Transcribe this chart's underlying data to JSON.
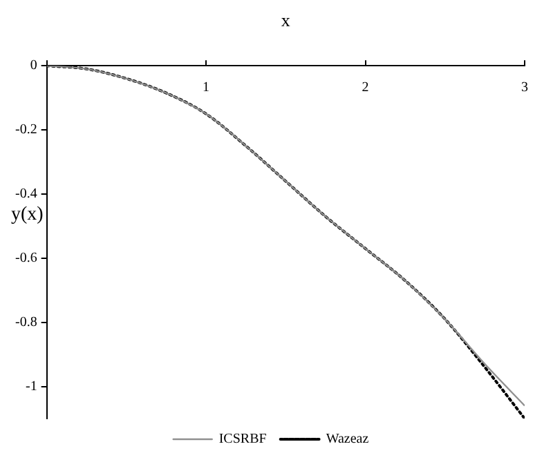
{
  "chart_data": {
    "type": "line",
    "xlabel": "x",
    "ylabel": "y(x)",
    "x": [
      0,
      0.25,
      0.5,
      0.75,
      1,
      1.25,
      1.5,
      1.75,
      2,
      2.25,
      2.5,
      2.75,
      3
    ],
    "series": [
      {
        "name": "ICSRBF",
        "color": "#909090",
        "line_style": "solid",
        "values": [
          0,
          -0.01,
          -0.04,
          -0.085,
          -0.15,
          -0.25,
          -0.36,
          -0.47,
          -0.57,
          -0.67,
          -0.79,
          -0.93,
          -1.06
        ]
      },
      {
        "name": "Wazeaz",
        "color": "#000000",
        "line_style": "dotted",
        "values": [
          0,
          -0.01,
          -0.04,
          -0.085,
          -0.15,
          -0.25,
          -0.36,
          -0.47,
          -0.57,
          -0.67,
          -0.79,
          -0.94,
          -1.1
        ]
      }
    ],
    "xlim": [
      0,
      3
    ],
    "xticks": [
      {
        "value": 0,
        "label": null
      },
      1,
      2,
      3
    ],
    "ylim": [
      -1.1,
      0
    ],
    "yticks": [
      0,
      -0.2,
      -0.4,
      -0.6,
      -0.8,
      -1
    ],
    "grid": false,
    "marker": "none",
    "legend": "bottom"
  }
}
